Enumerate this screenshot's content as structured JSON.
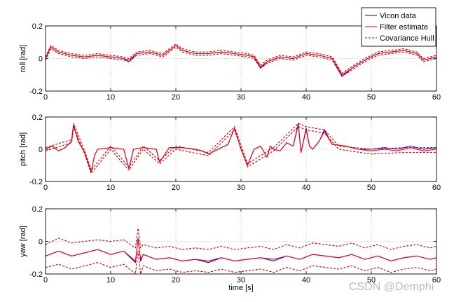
{
  "chart_data": [
    {
      "type": "line",
      "ylabel": "roll [rad]",
      "xlabel": "",
      "xlim": [
        0,
        60
      ],
      "ylim": [
        -0.2,
        0.2
      ],
      "xticks": [
        "0",
        "10",
        "20",
        "30",
        "40",
        "50",
        "60"
      ],
      "yticks": [
        "-0.2",
        "0",
        "0.2"
      ],
      "grid": true,
      "legend": "top-right",
      "series": [
        {
          "name": "Vicon data",
          "color": "#0000ff",
          "style": "solid",
          "x": [
            0,
            0.8,
            2,
            4,
            6,
            8,
            10,
            12,
            12.8,
            14,
            16,
            18,
            20,
            21,
            23,
            25,
            27,
            29,
            31,
            32,
            33,
            34,
            36,
            38,
            40,
            42,
            44,
            45.5,
            47,
            49,
            51,
            53,
            55,
            56,
            57,
            58,
            59,
            60
          ],
          "values": [
            0,
            0.07,
            0.04,
            0.02,
            0.01,
            0.02,
            0.01,
            0.0,
            -0.02,
            0.03,
            0.04,
            0.02,
            0.08,
            0.05,
            0.03,
            0.03,
            0.04,
            0.03,
            0.02,
            0.01,
            -0.06,
            -0.02,
            0.01,
            0.0,
            0.03,
            0.02,
            0.0,
            -0.11,
            -0.06,
            -0.01,
            0.03,
            0.04,
            0.05,
            0.04,
            0.03,
            -0.01,
            0.0,
            0.01
          ]
        },
        {
          "name": "Filter estimate",
          "color": "#ff0000",
          "style": "solid",
          "x": [
            0,
            0.8,
            2,
            4,
            6,
            8,
            10,
            12,
            12.8,
            14,
            16,
            18,
            20,
            21,
            23,
            25,
            27,
            29,
            31,
            32,
            33,
            34,
            36,
            38,
            40,
            42,
            44,
            45.5,
            47,
            49,
            51,
            53,
            55,
            56,
            57,
            58,
            59,
            60
          ],
          "values": [
            0,
            0.07,
            0.04,
            0.02,
            0.01,
            0.02,
            0.01,
            0.0,
            -0.01,
            0.03,
            0.04,
            0.02,
            0.08,
            0.05,
            0.03,
            0.03,
            0.04,
            0.03,
            0.02,
            0.01,
            -0.05,
            -0.02,
            0.01,
            0.0,
            0.03,
            0.02,
            0.0,
            -0.1,
            -0.06,
            -0.01,
            0.03,
            0.04,
            0.05,
            0.04,
            0.03,
            -0.01,
            0.0,
            0.01
          ]
        },
        {
          "name": "Covariance Hull",
          "color": "#cc0000",
          "style": "dashed",
          "x": [
            0,
            0.8,
            2,
            4,
            6,
            8,
            10,
            12,
            12.8,
            14,
            16,
            18,
            20,
            21,
            23,
            25,
            27,
            29,
            31,
            32,
            33,
            34,
            36,
            38,
            40,
            42,
            44,
            45.5,
            47,
            49,
            51,
            53,
            55,
            56,
            57,
            58,
            59,
            60
          ],
          "values": [
            0.01,
            0.08,
            0.05,
            0.03,
            0.02,
            0.03,
            0.02,
            0.01,
            0.0,
            0.04,
            0.05,
            0.03,
            0.09,
            0.06,
            0.04,
            0.04,
            0.05,
            0.04,
            0.03,
            0.02,
            -0.04,
            -0.01,
            0.02,
            0.01,
            0.04,
            0.03,
            0.01,
            -0.09,
            -0.05,
            0.0,
            0.04,
            0.05,
            0.06,
            0.05,
            0.04,
            0.0,
            0.01,
            0.02
          ]
        },
        {
          "name": "Covariance Hull",
          "color": "#cc0000",
          "style": "dashed",
          "x": [
            0,
            0.8,
            2,
            4,
            6,
            8,
            10,
            12,
            12.8,
            14,
            16,
            18,
            20,
            21,
            23,
            25,
            27,
            29,
            31,
            32,
            33,
            34,
            36,
            38,
            40,
            42,
            44,
            45.5,
            47,
            49,
            51,
            53,
            55,
            56,
            57,
            58,
            59,
            60
          ],
          "values": [
            -0.01,
            0.06,
            0.03,
            0.01,
            0.0,
            0.01,
            0.0,
            -0.01,
            -0.02,
            0.02,
            0.03,
            0.01,
            0.07,
            0.04,
            0.02,
            0.02,
            0.03,
            0.02,
            0.01,
            0.0,
            -0.06,
            -0.03,
            0.0,
            -0.01,
            0.02,
            0.01,
            -0.01,
            -0.11,
            -0.07,
            -0.02,
            0.02,
            0.03,
            0.04,
            0.03,
            0.02,
            -0.02,
            -0.01,
            0.0
          ]
        }
      ]
    },
    {
      "type": "line",
      "ylabel": "pitch [rad]",
      "xlabel": "",
      "xlim": [
        0,
        60
      ],
      "ylim": [
        -0.2,
        0.2
      ],
      "xticks": [
        "0",
        "10",
        "20",
        "30",
        "40",
        "50",
        "60"
      ],
      "yticks": [
        "-0.2",
        "0",
        "0.2"
      ],
      "grid": true,
      "series": [
        {
          "name": "Vicon data",
          "color": "#0000ff",
          "style": "solid",
          "x": [
            0,
            1,
            2,
            3,
            4,
            4.3,
            5,
            6,
            7,
            7.5,
            8,
            10,
            12,
            12.8,
            13.5,
            15,
            17,
            17.5,
            19,
            21,
            23,
            24,
            25,
            26,
            28,
            29,
            30,
            31,
            32,
            33,
            34,
            34.5,
            35,
            36,
            37,
            38,
            38.8,
            39.2,
            40,
            40.5,
            41,
            42,
            42.8,
            44,
            46,
            48,
            50,
            52,
            54,
            56,
            58,
            60
          ],
          "values": [
            0,
            0.02,
            -0.01,
            0.01,
            0.05,
            0.15,
            0.05,
            -0.02,
            -0.14,
            -0.04,
            0.0,
            0.01,
            0.0,
            -0.12,
            0.0,
            0.01,
            0.0,
            -0.08,
            0.01,
            0.01,
            0.0,
            -0.01,
            -0.03,
            -0.01,
            0.03,
            0.13,
            0.0,
            -0.1,
            0.0,
            0.02,
            -0.05,
            0.02,
            0.0,
            -0.01,
            0.04,
            0.02,
            0.16,
            -0.02,
            0.13,
            0.02,
            0.0,
            0.05,
            0.12,
            0.03,
            0.02,
            0.0,
            0.0,
            0.01,
            0.0,
            0.02,
            0.0,
            0.01
          ]
        },
        {
          "name": "Filter estimate",
          "color": "#ff0000",
          "style": "solid",
          "x": [
            0,
            1,
            2,
            3,
            4,
            4.3,
            5,
            6,
            7,
            7.5,
            8,
            10,
            12,
            12.8,
            13.5,
            15,
            17,
            17.5,
            19,
            21,
            23,
            24,
            25,
            26,
            28,
            29,
            30,
            31,
            32,
            33,
            34,
            34.5,
            35,
            36,
            37,
            38,
            38.8,
            39.2,
            40,
            40.5,
            41,
            42,
            42.8,
            44,
            46,
            48,
            50,
            52,
            54,
            56,
            58,
            60
          ],
          "values": [
            0,
            0.02,
            -0.01,
            0.01,
            0.05,
            0.15,
            0.05,
            -0.02,
            -0.14,
            -0.04,
            0.0,
            0.01,
            0.0,
            -0.12,
            0.0,
            0.01,
            0.0,
            -0.08,
            0.01,
            0.01,
            0.0,
            -0.01,
            -0.03,
            -0.01,
            0.03,
            0.13,
            0.0,
            -0.1,
            0.0,
            0.02,
            -0.05,
            0.02,
            0.0,
            -0.01,
            0.04,
            0.02,
            0.15,
            -0.02,
            0.12,
            0.02,
            0.0,
            0.05,
            0.11,
            0.03,
            0.02,
            0.0,
            -0.01,
            0.0,
            -0.01,
            0.01,
            -0.01,
            0.0
          ]
        },
        {
          "name": "Covariance Hull",
          "color": "#cc0000",
          "style": "dashed",
          "x": [
            0,
            4,
            4.3,
            6,
            7,
            10,
            12.8,
            15,
            17.5,
            20,
            25,
            29,
            31,
            35,
            38.8,
            40,
            42.8,
            45,
            50,
            55,
            60
          ],
          "values": [
            0.01,
            0.06,
            0.16,
            -0.01,
            -0.13,
            0.02,
            -0.11,
            0.02,
            -0.07,
            0.02,
            -0.02,
            0.14,
            -0.09,
            0.01,
            0.16,
            0.14,
            0.12,
            0.02,
            0.0,
            0.01,
            0.01
          ]
        },
        {
          "name": "Covariance Hull",
          "color": "#cc0000",
          "style": "dashed",
          "x": [
            0,
            4,
            4.3,
            6,
            7,
            10,
            12.8,
            15,
            17.5,
            20,
            25,
            29,
            31,
            35,
            38.8,
            40,
            42.8,
            45,
            50,
            55,
            60
          ],
          "values": [
            -0.01,
            0.04,
            0.14,
            -0.03,
            -0.15,
            0.0,
            -0.13,
            0.0,
            -0.09,
            0.0,
            -0.04,
            0.12,
            -0.11,
            -0.01,
            0.14,
            0.12,
            0.1,
            0.0,
            -0.03,
            -0.02,
            -0.02
          ]
        }
      ]
    },
    {
      "type": "line",
      "ylabel": "yaw [rad]",
      "xlabel": "time [s]",
      "xlim": [
        0,
        60
      ],
      "ylim": [
        -0.2,
        0.2
      ],
      "xticks": [
        "0",
        "10",
        "20",
        "30",
        "40",
        "50",
        "60"
      ],
      "yticks": [
        "-0.2",
        "0",
        "0.2"
      ],
      "grid": true,
      "series": [
        {
          "name": "Vicon data",
          "color": "#0000ff",
          "style": "solid",
          "x": [
            0,
            2,
            4,
            6,
            8,
            10,
            12,
            13.8,
            14.2,
            14.6,
            15,
            17,
            19,
            21,
            23,
            25,
            27,
            29,
            31,
            33,
            35,
            37,
            39,
            41,
            43,
            45,
            47,
            49,
            51,
            53,
            55,
            57,
            59,
            60
          ],
          "values": [
            -0.09,
            -0.06,
            -0.09,
            -0.07,
            -0.05,
            -0.08,
            -0.06,
            -0.13,
            0.02,
            -0.12,
            -0.08,
            -0.11,
            -0.1,
            -0.12,
            -0.11,
            -0.13,
            -0.1,
            -0.12,
            -0.11,
            -0.1,
            -0.12,
            -0.09,
            -0.11,
            -0.08,
            -0.09,
            -0.1,
            -0.08,
            -0.11,
            -0.09,
            -0.12,
            -0.1,
            -0.09,
            -0.11,
            -0.1
          ]
        },
        {
          "name": "Filter estimate",
          "color": "#ff0000",
          "style": "solid",
          "x": [
            0,
            2,
            4,
            6,
            8,
            10,
            12,
            13.8,
            14.2,
            14.6,
            15,
            17,
            19,
            21,
            23,
            25,
            27,
            29,
            31,
            33,
            35,
            37,
            39,
            41,
            43,
            45,
            47,
            49,
            51,
            53,
            55,
            57,
            59,
            60
          ],
          "values": [
            -0.09,
            -0.06,
            -0.09,
            -0.07,
            -0.05,
            -0.08,
            -0.06,
            -0.12,
            0.01,
            -0.11,
            -0.08,
            -0.11,
            -0.1,
            -0.12,
            -0.11,
            -0.12,
            -0.1,
            -0.12,
            -0.11,
            -0.1,
            -0.11,
            -0.09,
            -0.11,
            -0.08,
            -0.09,
            -0.1,
            -0.08,
            -0.11,
            -0.09,
            -0.12,
            -0.1,
            -0.09,
            -0.11,
            -0.1
          ]
        },
        {
          "name": "Covariance Hull",
          "color": "#cc0000",
          "style": "dashed",
          "x": [
            0,
            2,
            4,
            6,
            8,
            10,
            12,
            13.8,
            14.2,
            14.6,
            15,
            17,
            19,
            21,
            23,
            25,
            27,
            29,
            31,
            33,
            35,
            37,
            39,
            41,
            43,
            45,
            47,
            49,
            51,
            53,
            55,
            57,
            59,
            60
          ],
          "values": [
            -0.02,
            0.02,
            -0.01,
            0.0,
            0.01,
            0.0,
            0.01,
            -0.04,
            0.08,
            -0.04,
            -0.02,
            -0.04,
            -0.03,
            -0.05,
            -0.04,
            -0.05,
            -0.03,
            -0.05,
            -0.04,
            -0.03,
            -0.05,
            -0.02,
            -0.04,
            -0.01,
            -0.02,
            -0.03,
            -0.01,
            -0.04,
            -0.02,
            -0.05,
            -0.03,
            -0.02,
            -0.04,
            -0.03
          ]
        },
        {
          "name": "Covariance Hull",
          "color": "#cc0000",
          "style": "dashed",
          "x": [
            0,
            2,
            4,
            6,
            8,
            10,
            12,
            13.8,
            14.2,
            14.6,
            15,
            17,
            19,
            21,
            23,
            25,
            27,
            29,
            31,
            33,
            35,
            37,
            39,
            41,
            43,
            45,
            47,
            49,
            51,
            53,
            55,
            57,
            59,
            60
          ],
          "values": [
            -0.16,
            -0.14,
            -0.17,
            -0.15,
            -0.13,
            -0.16,
            -0.14,
            -0.2,
            -0.06,
            -0.2,
            -0.15,
            -0.18,
            -0.17,
            -0.19,
            -0.18,
            -0.19,
            -0.17,
            -0.19,
            -0.18,
            -0.17,
            -0.19,
            -0.16,
            -0.18,
            -0.15,
            -0.16,
            -0.17,
            -0.15,
            -0.18,
            -0.16,
            -0.19,
            -0.17,
            -0.16,
            -0.18,
            -0.17
          ]
        }
      ]
    }
  ],
  "legend": {
    "entries": [
      {
        "label": "Vicon data",
        "color": "#0000ff",
        "style": "solid"
      },
      {
        "label": "Filter estimate",
        "color": "#ff0000",
        "style": "solid"
      },
      {
        "label": "Covariance Hull",
        "color": "#cc0000",
        "style": "dashed"
      }
    ]
  },
  "watermark": "CSDN @Demphi"
}
